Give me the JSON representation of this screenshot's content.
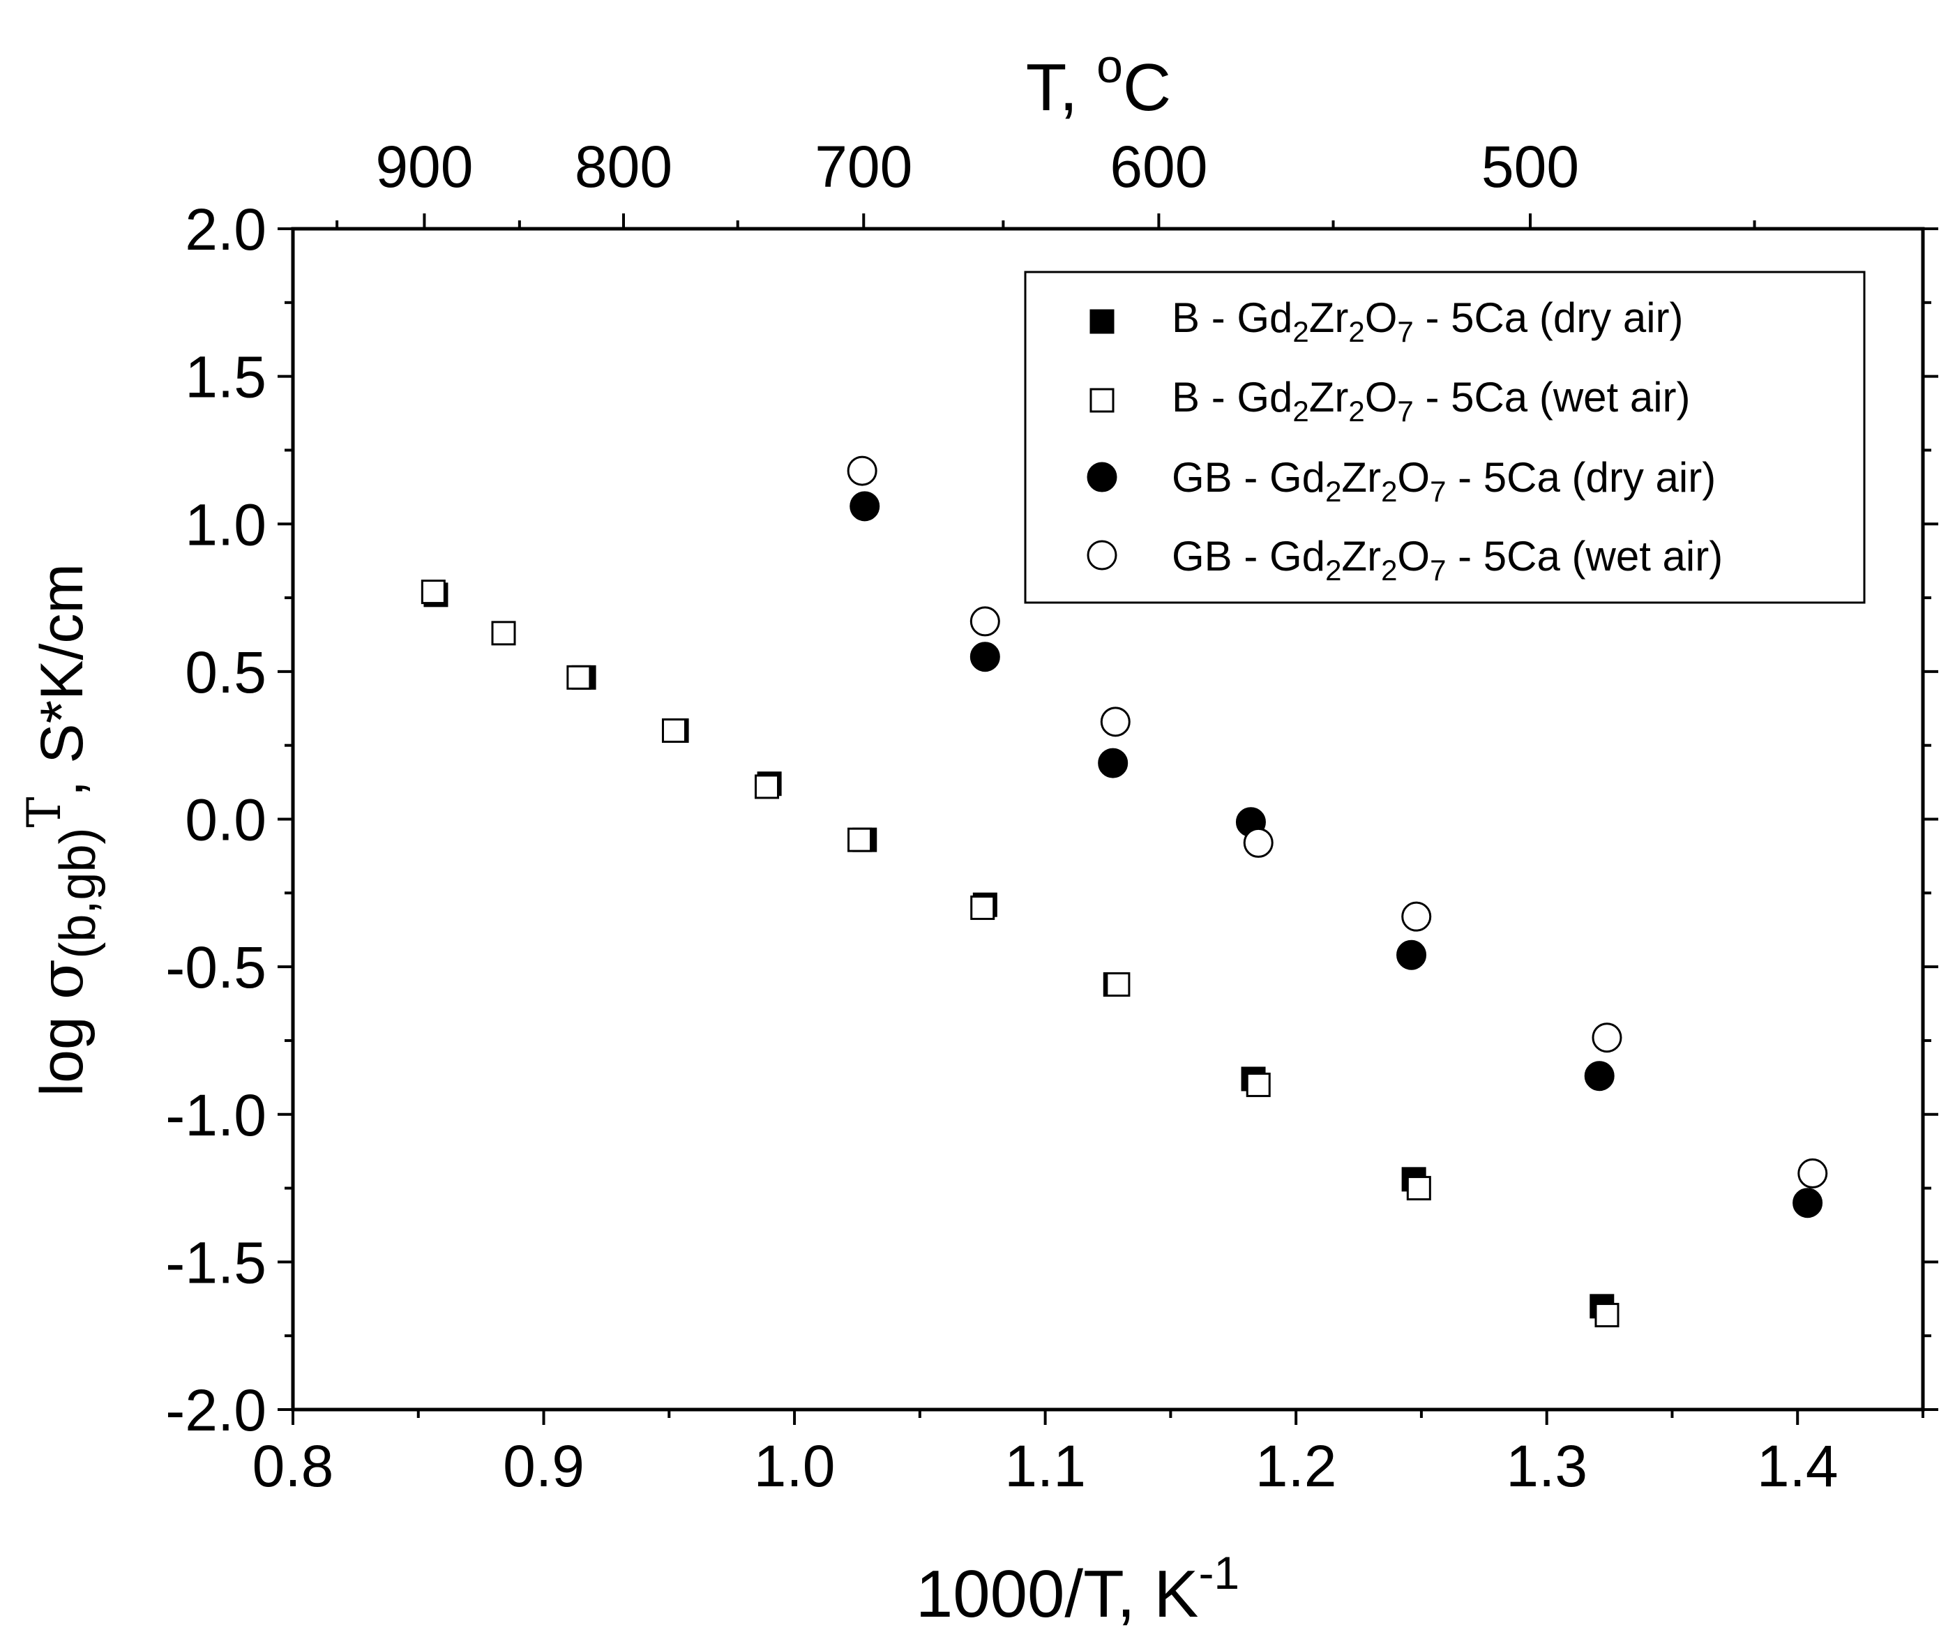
{
  "chart_data": {
    "type": "scatter",
    "title": "",
    "xlabel": "1000/T, K",
    "xlabel_sup": "-1",
    "ylabel_prefix": "log ",
    "ylabel_sigma": "σ",
    "ylabel_sub": "(b,gb)",
    "ylabel_T": "T",
    "ylabel_suffix": ", S*K/cm",
    "top_label": "T, ",
    "top_label_sup": "o",
    "top_label_unit": "C",
    "xlim": [
      0.8,
      1.45
    ],
    "ylim": [
      -2.0,
      2.0
    ],
    "x_ticks": [
      0.8,
      0.9,
      1.0,
      1.1,
      1.2,
      1.3,
      1.4
    ],
    "x_tick_labels": [
      "0.8",
      "0.9",
      "1.0",
      "1.1",
      "1.2",
      "1.3",
      "1.4"
    ],
    "y_ticks": [
      -2.0,
      -1.5,
      -1.0,
      -0.5,
      0.0,
      0.5,
      1.0,
      1.5,
      2.0
    ],
    "y_tick_labels": [
      "-2.0",
      "-1.5",
      "-1.0",
      "-0.5",
      "0.0",
      "0.5",
      "1.0",
      "1.5",
      "2.0"
    ],
    "top_ticks_celsius": [
      900,
      800,
      700,
      600,
      500
    ],
    "top_tick_labels": [
      "900",
      "800",
      "700",
      "600",
      "500"
    ],
    "series": [
      {
        "name": "B - Gd2Zr2O7 - 5Ca (dry air)",
        "legend": {
          "pre": "B - Gd",
          "s1": "2",
          "m1": "Zr",
          "s2": "2",
          "m2": "O",
          "s3": "7",
          "post": " - 5Ca (dry air)"
        },
        "marker": "square",
        "filled": true,
        "x": [
          0.857,
          0.916,
          0.953,
          0.99,
          1.028,
          1.076,
          1.128,
          1.183,
          1.247,
          1.322
        ],
        "y": [
          0.76,
          0.48,
          0.3,
          0.12,
          -0.07,
          -0.29,
          -0.56,
          -0.88,
          -1.22,
          -1.65
        ]
      },
      {
        "name": "B - Gd2Zr2O7 - 5Ca (wet air)",
        "legend": {
          "pre": "B - Gd",
          "s1": "2",
          "m1": "Zr",
          "s2": "2",
          "m2": "O",
          "s3": "7",
          "post": " - 5Ca (wet air)"
        },
        "marker": "square",
        "filled": false,
        "x": [
          0.856,
          0.884,
          0.914,
          0.952,
          0.989,
          1.026,
          1.075,
          1.129,
          1.185,
          1.249,
          1.324
        ],
        "y": [
          0.77,
          0.63,
          0.48,
          0.3,
          0.11,
          -0.07,
          -0.3,
          -0.56,
          -0.9,
          -1.25,
          -1.68
        ]
      },
      {
        "name": "GB - Gd2Zr2O7 - 5Ca (dry air)",
        "legend": {
          "pre": "GB - Gd",
          "s1": "2",
          "m1": "Zr",
          "s2": "2",
          "m2": "O",
          "s3": "7",
          "post": " - 5Ca (dry air)"
        },
        "marker": "circle",
        "filled": true,
        "x": [
          1.028,
          1.076,
          1.127,
          1.182,
          1.246,
          1.321,
          1.404
        ],
        "y": [
          1.06,
          0.55,
          0.19,
          -0.01,
          -0.46,
          -0.87,
          -1.3
        ]
      },
      {
        "name": "GB - Gd2Zr2O7 - 5Ca (wet air)",
        "legend": {
          "pre": "GB - Gd",
          "s1": "2",
          "m1": "Zr",
          "s2": "2",
          "m2": "O",
          "s3": "7",
          "post": " - 5Ca (wet air)"
        },
        "marker": "circle",
        "filled": false,
        "x": [
          1.027,
          1.076,
          1.128,
          1.185,
          1.248,
          1.324,
          1.406
        ],
        "y": [
          1.18,
          0.67,
          0.33,
          -0.08,
          -0.33,
          -0.74,
          -1.2
        ]
      }
    ],
    "legend_position": "top-right",
    "grid": false
  }
}
